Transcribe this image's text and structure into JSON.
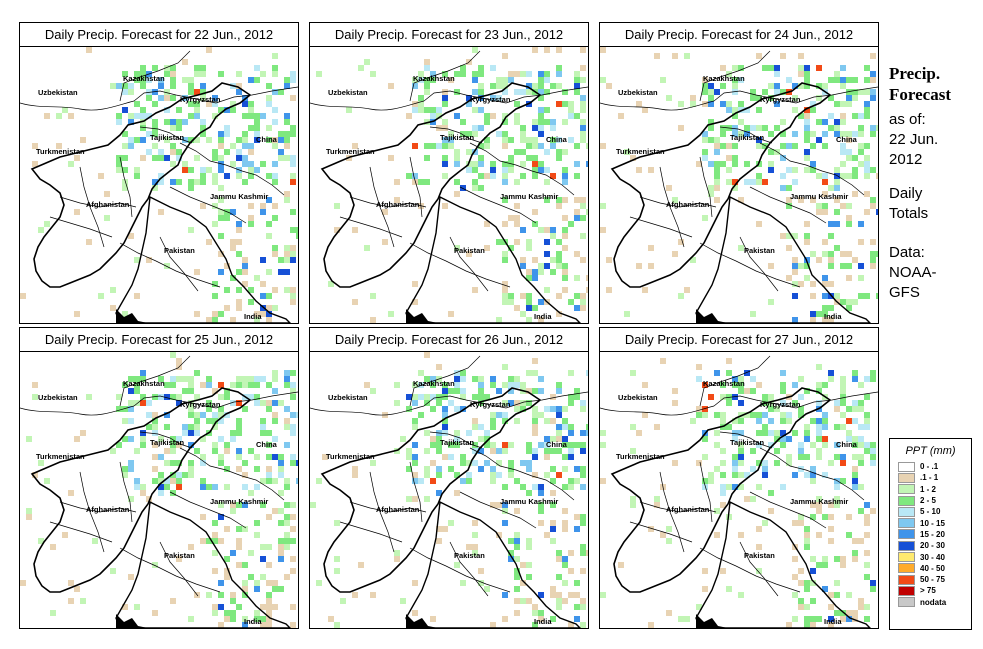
{
  "panels": [
    {
      "title": "Daily Precip. Forecast for  22 Jun., 2012"
    },
    {
      "title": "Daily Precip. Forecast for  23 Jun., 2012"
    },
    {
      "title": "Daily Precip. Forecast for  24 Jun., 2012"
    },
    {
      "title": "Daily Precip. Forecast for  25 Jun., 2012"
    },
    {
      "title": "Daily Precip. Forecast for  26 Jun., 2012"
    },
    {
      "title": "Daily Precip. Forecast for  27 Jun., 2012"
    }
  ],
  "map_labels": {
    "kazakhstan": "Kazakhstan",
    "uzbekistan": "Uzbekistan",
    "kyrgyzstan": "Kyrgyzstan",
    "turkmenistan": "Turkmenistan",
    "tajikistan": "Tajikistan",
    "china": "China",
    "afghanistan": "Afghanistan",
    "jammu_kashmir": "Jammu Kashmir",
    "pakistan": "Pakistan",
    "india": "India"
  },
  "side": {
    "title_line1": "Precip.",
    "title_line2": "Forecast",
    "asof_line1": "as of:",
    "asof_line2": "22 Jun.",
    "asof_line3": "2012",
    "daily_line1": "Daily",
    "daily_line2": "Totals",
    "data_line1": "Data:",
    "data_line2": "NOAA-",
    "data_line3": "GFS"
  },
  "legend": {
    "title": "PPT (mm)",
    "entries": [
      {
        "label": "0 - .1",
        "color": "#ffffff"
      },
      {
        "label": ".1 - 1",
        "color": "#e8d3b3"
      },
      {
        "label": "1 - 2",
        "color": "#c2f5b5"
      },
      {
        "label": "2 - 5",
        "color": "#7fe87f"
      },
      {
        "label": "5 - 10",
        "color": "#b9e8f5"
      },
      {
        "label": "10 - 15",
        "color": "#7fc8f0"
      },
      {
        "label": "15 - 20",
        "color": "#3f94ea"
      },
      {
        "label": "20 - 30",
        "color": "#1650d6"
      },
      {
        "label": "30 - 40",
        "color": "#ffea6e"
      },
      {
        "label": "40 - 50",
        "color": "#ffab2a"
      },
      {
        "label": "50 - 75",
        "color": "#f24a16"
      },
      {
        "label": "> 75",
        "color": "#c00000"
      },
      {
        "label": "nodata",
        "color": "#c8c8c8"
      }
    ]
  }
}
